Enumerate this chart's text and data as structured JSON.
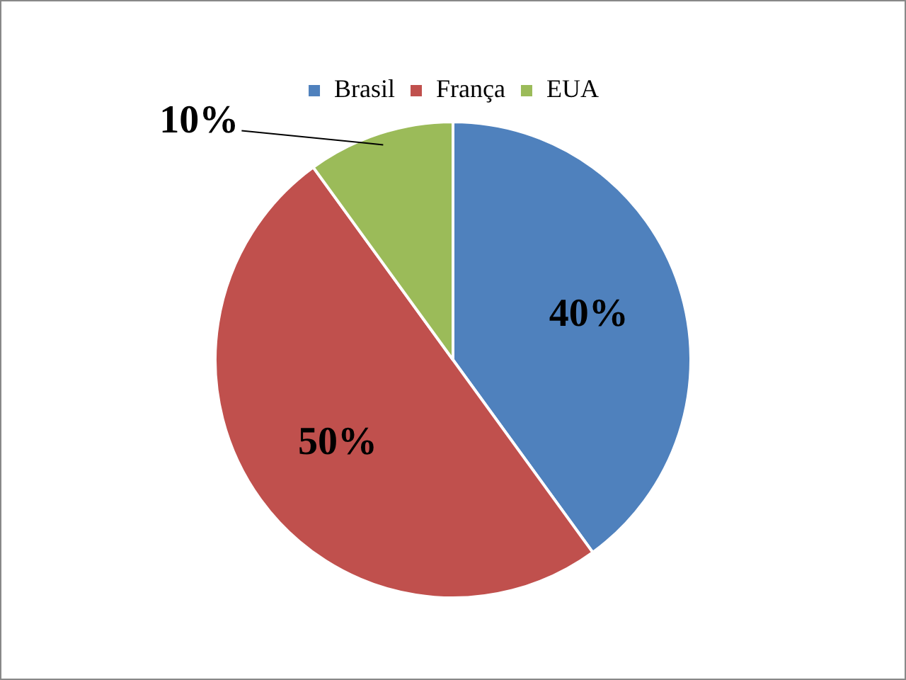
{
  "chart_data": {
    "type": "pie",
    "categories": [
      "Brasil",
      "França",
      "EUA"
    ],
    "values": [
      40,
      50,
      10
    ],
    "colors": [
      "#4f81bd",
      "#c0504d",
      "#9bbb59"
    ],
    "value_labels": [
      "40%",
      "50%",
      "10%"
    ],
    "legend": "top"
  }
}
